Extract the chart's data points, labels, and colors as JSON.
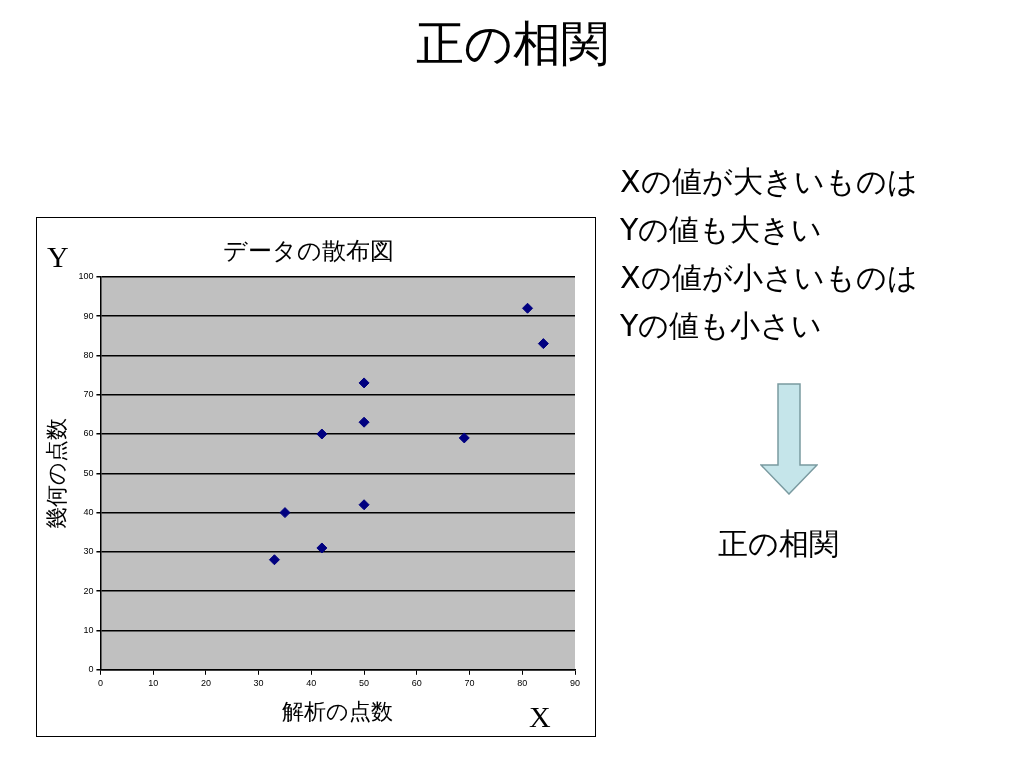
{
  "chart_data": {
    "type": "scatter",
    "title": "正の相関",
    "subtitle": "データの散布図",
    "xlabel": "解析の点数",
    "ylabel": "幾何の点数",
    "annotations": [
      "Y",
      "X",
      "Xの値が大きいものは",
      "Yの値も大きい",
      "Xの値が小さいものは",
      "Yの値も小さい",
      "正の相関"
    ],
    "series": [
      {
        "color": "#000080",
        "x": [
          33,
          35,
          42,
          42,
          50,
          50,
          50,
          69,
          81,
          84
        ],
        "values": [
          28,
          40,
          31,
          60,
          42,
          63,
          73,
          59,
          92,
          83
        ]
      }
    ],
    "xlim": [
      0,
      90
    ],
    "xticks": [
      0,
      10,
      20,
      30,
      40,
      50,
      60,
      70,
      80,
      90
    ],
    "ylim": [
      0,
      100
    ],
    "yticks": [
      0,
      10,
      20,
      30,
      40,
      50,
      60,
      70,
      80,
      90,
      100
    ],
    "grid": "y",
    "legend": false,
    "marker": "diamond"
  }
}
